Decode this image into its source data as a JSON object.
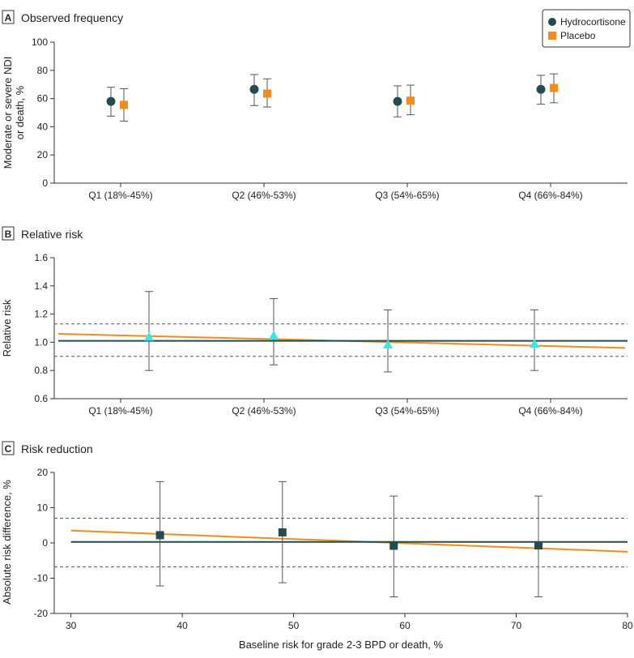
{
  "chart_data": [
    {
      "panel": "A",
      "title": "Observed frequency",
      "type": "scatter",
      "categories": [
        "Q1 (18%-45%)",
        "Q2 (46%-53%)",
        "Q3 (54%-65%)",
        "Q4 (66%-84%)"
      ],
      "ylabel_lines": [
        "Moderate or severe NDI",
        "or death, %"
      ],
      "ylim": [
        0,
        100
      ],
      "yticks": [
        0,
        20,
        40,
        60,
        80,
        100
      ],
      "legend_position": "top-right",
      "series": [
        {
          "name": "Hydrocortisone",
          "color": "#244b4f",
          "marker": "circle",
          "values": [
            58,
            66.5,
            58,
            66.5
          ],
          "lower": [
            47.5,
            55,
            47,
            56
          ],
          "upper": [
            68,
            77,
            69,
            76.5
          ]
        },
        {
          "name": "Placebo",
          "color": "#f28c1c",
          "marker": "square",
          "values": [
            55.5,
            63.5,
            58.5,
            67.5
          ],
          "lower": [
            44,
            54,
            48.5,
            57
          ],
          "upper": [
            67,
            74,
            69.5,
            77.5
          ]
        }
      ]
    },
    {
      "panel": "B",
      "title": "Relative risk",
      "type": "scatter",
      "categories": [
        "Q1 (18%-45%)",
        "Q2 (46%-53%)",
        "Q3 (54%-65%)",
        "Q4 (66%-84%)"
      ],
      "ylabel": "Relative risk",
      "ylim": [
        0.6,
        1.6
      ],
      "yticks": [
        0.6,
        0.8,
        1.0,
        1.2,
        1.4,
        1.6
      ],
      "ytick_labels": [
        "0.6",
        "0.8",
        "1.0",
        "1.2",
        "1.4",
        "1.6"
      ],
      "points": {
        "color": "#3ee6e6",
        "marker": "triangle",
        "x": [
          1.0,
          2.0,
          3.0,
          4.0
        ],
        "values": [
          1.04,
          1.05,
          0.985,
          0.99
        ],
        "lower": [
          0.8,
          0.84,
          0.79,
          0.8
        ],
        "upper": [
          1.36,
          1.31,
          1.23,
          1.23
        ]
      },
      "flat_line": {
        "color": "#244b4f",
        "values": [
          1.01,
          1.01
        ]
      },
      "trend_line": {
        "color": "#f28c1c",
        "values": [
          1.06,
          0.96
        ]
      },
      "ci_band": {
        "lower": 0.9,
        "upper": 1.13
      }
    },
    {
      "panel": "C",
      "title": "Risk reduction",
      "type": "scatter",
      "xlabel": "Baseline risk for grade 2-3 BPD or death, %",
      "ylabel": "Absolute risk difference, %",
      "xlim": [
        28.5,
        80
      ],
      "xticks": [
        30,
        40,
        50,
        60,
        70,
        80
      ],
      "ylim": [
        -20,
        20
      ],
      "yticks": [
        -20,
        -10,
        0,
        10,
        20
      ],
      "points": {
        "color": "#244b4f",
        "marker": "square",
        "x": [
          38,
          49,
          59,
          72
        ],
        "values": [
          2.2,
          3.0,
          -0.8,
          -0.7
        ],
        "lower": [
          -12.2,
          -11.3,
          -15.3,
          -15.3
        ],
        "upper": [
          17.4,
          17.4,
          13.3,
          13.3
        ]
      },
      "flat_line": {
        "color": "#244b4f",
        "x": [
          30,
          80
        ],
        "values": [
          0.3,
          0.3
        ]
      },
      "trend_line": {
        "color": "#f28c1c",
        "x": [
          30,
          80
        ],
        "values": [
          3.5,
          -2.5
        ]
      },
      "ci_band": {
        "lower": -6.8,
        "upper": 7.0
      }
    }
  ]
}
